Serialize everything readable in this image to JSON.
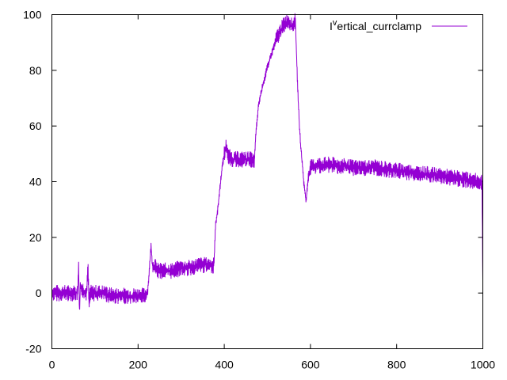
{
  "chart_data": {
    "type": "line",
    "title": "",
    "xlabel": "",
    "ylabel": "",
    "xlim": [
      0,
      1000
    ],
    "ylim": [
      -20,
      100
    ],
    "x_ticks": [
      0,
      200,
      400,
      600,
      800,
      1000
    ],
    "y_ticks": [
      -20,
      0,
      20,
      40,
      60,
      80,
      100
    ],
    "grid": false,
    "legend_position": "top-right",
    "series": [
      {
        "name": "I^vertical_currclamp",
        "name_display": {
          "base": "I",
          "superscript": "v",
          "rest": "ertical_currclamp"
        },
        "color": "#9400d3",
        "x": [
          0,
          20,
          40,
          60,
          62,
          64,
          66,
          80,
          84,
          86,
          88,
          100,
          120,
          140,
          160,
          180,
          200,
          215,
          222,
          226,
          230,
          234,
          238,
          245,
          260,
          280,
          300,
          320,
          340,
          360,
          376,
          378,
          380,
          385,
          390,
          395,
          400,
          405,
          410,
          420,
          430,
          440,
          450,
          460,
          470,
          472,
          476,
          480,
          490,
          500,
          510,
          520,
          530,
          540,
          550,
          555,
          560,
          565,
          570,
          575,
          580,
          585,
          590,
          595,
          600,
          620,
          650,
          700,
          750,
          800,
          850,
          900,
          950,
          990,
          998,
          1000
        ],
        "y": [
          0,
          0,
          0,
          0,
          11,
          -8,
          2,
          0,
          9,
          -4,
          0,
          0,
          0,
          -1,
          -1,
          -1,
          -1,
          -1,
          0,
          8,
          17,
          9,
          10,
          8,
          8,
          8,
          9,
          9,
          10,
          10,
          10,
          18,
          25,
          30,
          38,
          45,
          50,
          53,
          49,
          48,
          48,
          48,
          48,
          48,
          47,
          54,
          62,
          68,
          75,
          81,
          86,
          91,
          94,
          97,
          98,
          96,
          96,
          98,
          75,
          58,
          48,
          39,
          33,
          42,
          45,
          46,
          46,
          45,
          45,
          44,
          43,
          42,
          41,
          40,
          40,
          5
        ]
      }
    ]
  }
}
